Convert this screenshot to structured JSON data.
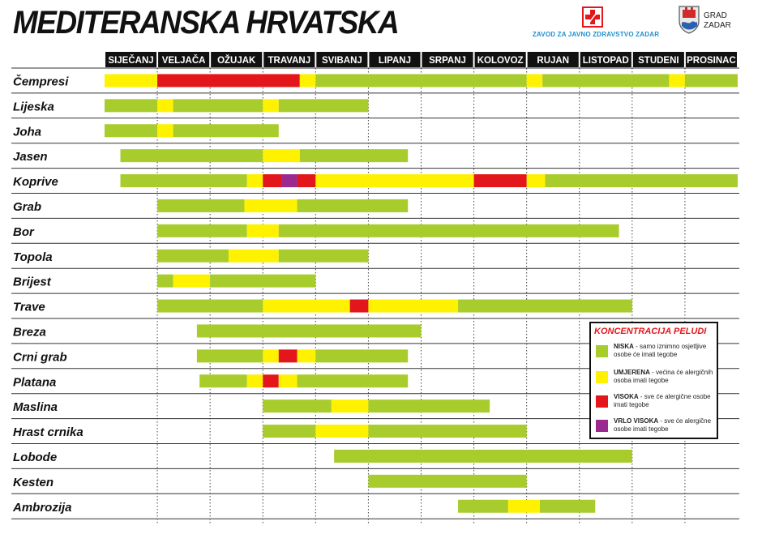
{
  "header": {
    "title": "MEDITERANSKA HRVATSKA",
    "logo_zavod_text": "ZAVOD ZA JAVNO ZDRAVSTVO ZADAR",
    "logo_grad_line1": "GRAD",
    "logo_grad_line2": "ZADAR"
  },
  "colors": {
    "niska": "#a8cc2c",
    "umjerena": "#fff200",
    "visoka": "#e3161b",
    "vrlo_visoka": "#9b2a8f",
    "zavod_blue": "#1f8fd0"
  },
  "legend": {
    "title": "KONCENTRACIJA PELUDI",
    "items": [
      {
        "key": "niska",
        "label": "NISKA",
        "text": " - samo iznimno osjetljive osobe će imati tegobe"
      },
      {
        "key": "umjerena",
        "label": "UMJERENA",
        "text": " - većina će alergičnih osoba imati tegobe"
      },
      {
        "key": "visoka",
        "label": "VISOKA",
        "text": " - sve će alergične osobe imati tegobe"
      },
      {
        "key": "vrlo_visoka",
        "label": "VRLO VISOKA",
        "text": " - sve će alergične osobe imati tegobe"
      }
    ]
  },
  "chart_data": {
    "type": "gantt",
    "title": "MEDITERANSKA HRVATSKA",
    "x_unit": "month (0 = start of SIJEČANJ, 12 = end of PROSINAC)",
    "months": [
      "SIJEČANJ",
      "VELJAČA",
      "OŽUJAK",
      "TRAVANJ",
      "SVIBANJ",
      "LIPANJ",
      "SRPANJ",
      "KOLOVOZ",
      "RUJAN",
      "LISTOPAD",
      "STUDENI",
      "PROSINAC"
    ],
    "plants": [
      {
        "name": "Čempresi",
        "segments": [
          [
            0,
            1,
            "umjerena"
          ],
          [
            1,
            3.7,
            "visoka"
          ],
          [
            3.7,
            4,
            "umjerena"
          ],
          [
            4,
            8,
            "niska"
          ],
          [
            8,
            8.3,
            "umjerena"
          ],
          [
            8.3,
            10.7,
            "niska"
          ],
          [
            10.7,
            11,
            "umjerena"
          ],
          [
            11,
            12,
            "niska"
          ]
        ]
      },
      {
        "name": "Lijeska",
        "segments": [
          [
            0,
            1,
            "niska"
          ],
          [
            1,
            1.3,
            "umjerena"
          ],
          [
            1.3,
            3,
            "niska"
          ],
          [
            3,
            3.3,
            "umjerena"
          ],
          [
            3.3,
            5,
            "niska"
          ]
        ]
      },
      {
        "name": "Joha",
        "segments": [
          [
            0,
            1,
            "niska"
          ],
          [
            1,
            1.3,
            "umjerena"
          ],
          [
            1.3,
            3.3,
            "niska"
          ]
        ]
      },
      {
        "name": "Jasen",
        "segments": [
          [
            0.3,
            3,
            "niska"
          ],
          [
            3,
            3.7,
            "umjerena"
          ],
          [
            3.7,
            5.75,
            "niska"
          ]
        ]
      },
      {
        "name": "Koprive",
        "segments": [
          [
            0.3,
            2.7,
            "niska"
          ],
          [
            2.7,
            3,
            "umjerena"
          ],
          [
            3,
            3.35,
            "visoka"
          ],
          [
            3.35,
            3.65,
            "vrlo_visoka"
          ],
          [
            3.65,
            4,
            "visoka"
          ],
          [
            4,
            7,
            "umjerena"
          ],
          [
            7,
            8,
            "visoka"
          ],
          [
            8,
            8.35,
            "umjerena"
          ],
          [
            8.35,
            12,
            "niska"
          ]
        ]
      },
      {
        "name": "Grab",
        "segments": [
          [
            1,
            2.65,
            "niska"
          ],
          [
            2.65,
            3.65,
            "umjerena"
          ],
          [
            3.65,
            5.75,
            "niska"
          ]
        ]
      },
      {
        "name": "Bor",
        "segments": [
          [
            1,
            2.7,
            "niska"
          ],
          [
            2.7,
            3.3,
            "umjerena"
          ],
          [
            3.3,
            9.75,
            "niska"
          ]
        ]
      },
      {
        "name": "Topola",
        "segments": [
          [
            1,
            2.35,
            "niska"
          ],
          [
            2.35,
            3.3,
            "umjerena"
          ],
          [
            3.3,
            5,
            "niska"
          ]
        ]
      },
      {
        "name": "Brijest",
        "segments": [
          [
            1,
            1.3,
            "niska"
          ],
          [
            1.3,
            2,
            "umjerena"
          ],
          [
            2,
            4,
            "niska"
          ]
        ]
      },
      {
        "name": "Trave",
        "segments": [
          [
            1,
            3,
            "niska"
          ],
          [
            3,
            4.65,
            "umjerena"
          ],
          [
            4.65,
            5,
            "visoka"
          ],
          [
            5,
            6.7,
            "umjerena"
          ],
          [
            6.7,
            10,
            "niska"
          ]
        ]
      },
      {
        "name": "Breza",
        "segments": [
          [
            1.75,
            6,
            "niska"
          ]
        ]
      },
      {
        "name": "Crni grab",
        "segments": [
          [
            1.75,
            3,
            "niska"
          ],
          [
            3,
            3.3,
            "umjerena"
          ],
          [
            3.3,
            3.65,
            "visoka"
          ],
          [
            3.65,
            4,
            "umjerena"
          ],
          [
            4,
            5.75,
            "niska"
          ]
        ]
      },
      {
        "name": "Platana",
        "segments": [
          [
            1.8,
            2.7,
            "niska"
          ],
          [
            2.7,
            3,
            "umjerena"
          ],
          [
            3,
            3.3,
            "visoka"
          ],
          [
            3.3,
            3.65,
            "umjerena"
          ],
          [
            3.65,
            5.75,
            "niska"
          ]
        ]
      },
      {
        "name": "Maslina",
        "segments": [
          [
            3,
            4.3,
            "niska"
          ],
          [
            4.3,
            5,
            "umjerena"
          ],
          [
            5,
            7.3,
            "niska"
          ]
        ]
      },
      {
        "name": "Hrast crnika",
        "segments": [
          [
            3,
            4,
            "niska"
          ],
          [
            4,
            5,
            "umjerena"
          ],
          [
            5,
            8,
            "niska"
          ]
        ]
      },
      {
        "name": "Lobode",
        "segments": [
          [
            4.35,
            10,
            "niska"
          ]
        ]
      },
      {
        "name": "Kesten",
        "segments": [
          [
            5,
            8,
            "niska"
          ]
        ]
      },
      {
        "name": "Ambrozija",
        "segments": [
          [
            6.7,
            7.65,
            "niska"
          ],
          [
            7.65,
            8.25,
            "umjerena"
          ],
          [
            8.25,
            9.3,
            "niska"
          ]
        ]
      }
    ]
  }
}
